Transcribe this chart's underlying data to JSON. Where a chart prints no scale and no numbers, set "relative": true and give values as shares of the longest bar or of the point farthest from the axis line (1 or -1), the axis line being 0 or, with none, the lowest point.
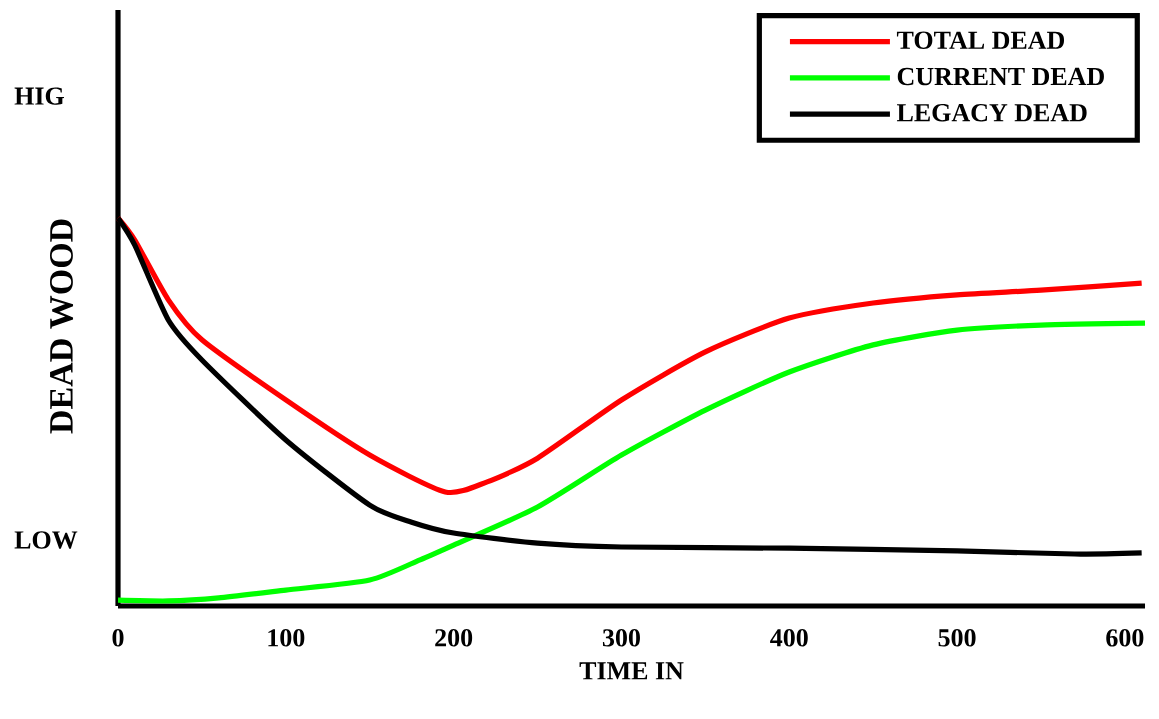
{
  "chart_data": {
    "type": "line",
    "relative": true,
    "xlabel": "TIME  IN",
    "ylabel": "DEAD  WOOD",
    "annotations": [
      "HIG",
      "LOW"
    ],
    "xlim": [
      0,
      612
    ],
    "xticks": [
      0,
      100,
      200,
      300,
      400,
      500,
      600
    ],
    "legend": "top right",
    "grid": false,
    "marker": "none",
    "line_style": "solid",
    "series": [
      {
        "name": "TOTAL  DEAD",
        "color": "#ff0000",
        "x": [
          0,
          10,
          30,
          50,
          100,
          150,
          195,
          220,
          250,
          300,
          350,
          400,
          450,
          500,
          550,
          610
        ],
        "values": [
          1.0,
          0.943,
          0.789,
          0.686,
          0.531,
          0.389,
          0.294,
          0.32,
          0.381,
          0.531,
          0.655,
          0.742,
          0.781,
          0.802,
          0.814,
          0.832
        ]
      },
      {
        "name": "CURRENT  DEAD",
        "color": "#00ff00",
        "x": [
          0,
          30,
          60,
          100,
          150,
          180,
          200,
          250,
          300,
          350,
          400,
          450,
          500,
          550,
          612
        ],
        "values": [
          0.015,
          0.013,
          0.021,
          0.041,
          0.067,
          0.119,
          0.157,
          0.255,
          0.389,
          0.505,
          0.603,
          0.673,
          0.711,
          0.724,
          0.729
        ]
      },
      {
        "name": "LEGACY  DEAD",
        "color": "#000000",
        "x": [
          0,
          10,
          30,
          50,
          100,
          150,
          175,
          200,
          250,
          300,
          400,
          500,
          570,
          610
        ],
        "values": [
          1.0,
          0.93,
          0.737,
          0.634,
          0.428,
          0.26,
          0.216,
          0.188,
          0.162,
          0.152,
          0.149,
          0.142,
          0.134,
          0.137
        ]
      }
    ]
  }
}
